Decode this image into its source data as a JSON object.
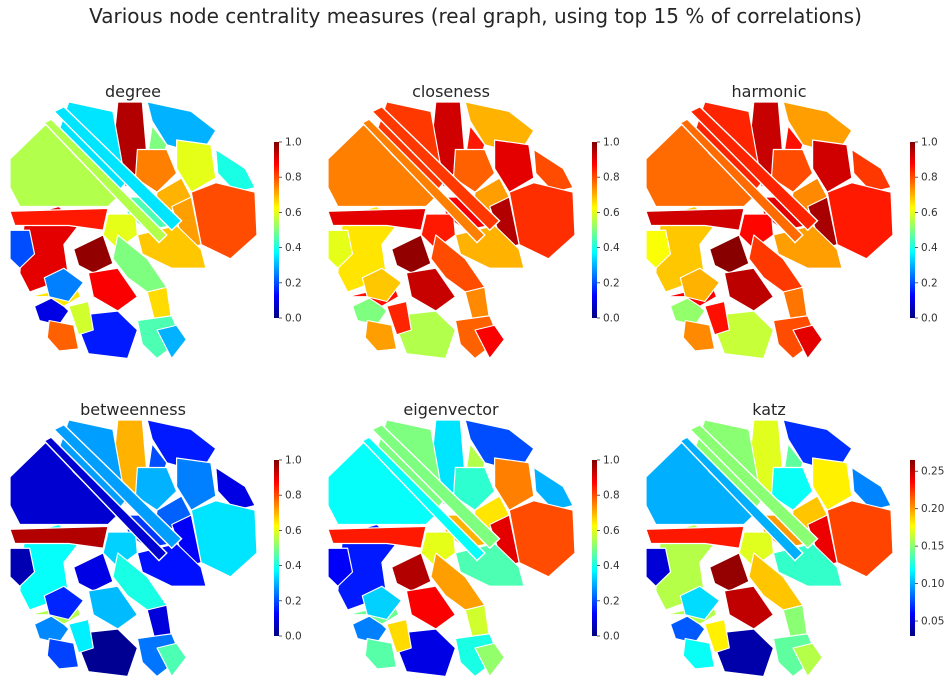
{
  "figure": {
    "title": "Various node centrality measures (real graph, using top 15 % of correlations)"
  },
  "colormap": [
    "#00007f",
    "#0000ff",
    "#007fff",
    "#00ffff",
    "#7fff7f",
    "#ffff00",
    "#ff7f00",
    "#ff0000",
    "#7f0000"
  ],
  "chart_data": [
    {
      "type": "heatmap",
      "title": "degree",
      "colorbar": {
        "min": 0.0,
        "max": 1.0,
        "ticks": [
          "0.0",
          "0.2",
          "0.4",
          "0.6",
          "0.8",
          "1.0"
        ],
        "tick_values": [
          0.0,
          0.2,
          0.4,
          0.6,
          0.8,
          1.0
        ]
      },
      "region_values": [
        0.9,
        0.95,
        0.3,
        0.5,
        0.6,
        0.75,
        0.4,
        0.7,
        0.8,
        0.72,
        0.45,
        0.35,
        0.55,
        0.85,
        0.6,
        0.68,
        0.2,
        0.1,
        0.65,
        0.98,
        0.5,
        0.25,
        0.88,
        0.66,
        0.45,
        0.15,
        0.58,
        0.3,
        0.78
      ]
    },
    {
      "type": "heatmap",
      "title": "closeness",
      "colorbar": {
        "min": 0.0,
        "max": 1.0,
        "ticks": [
          "0.0",
          "0.2",
          "0.4",
          "0.6",
          "0.8",
          "1.0"
        ],
        "tick_values": [
          0.0,
          0.2,
          0.4,
          0.6,
          0.8,
          1.0
        ]
      },
      "region_values": [
        0.65,
        0.92,
        0.7,
        0.85,
        0.9,
        0.78,
        0.8,
        0.72,
        0.83,
        0.95,
        0.88,
        0.82,
        0.75,
        0.9,
        0.85,
        0.7,
        0.6,
        0.5,
        0.86,
        0.98,
        0.8,
        0.68,
        0.93,
        0.74,
        0.78,
        0.55,
        0.84,
        0.88,
        0.72
      ]
    },
    {
      "type": "heatmap",
      "title": "harmonic",
      "colorbar": {
        "min": 0.0,
        "max": 1.0,
        "ticks": [
          "0.0",
          "0.2",
          "0.4",
          "0.6",
          "0.8",
          "1.0"
        ],
        "tick_values": [
          0.0,
          0.2,
          0.4,
          0.6,
          0.8,
          1.0
        ]
      },
      "region_values": [
        0.68,
        0.93,
        0.72,
        0.86,
        0.92,
        0.8,
        0.82,
        0.74,
        0.85,
        0.96,
        0.9,
        0.84,
        0.77,
        0.92,
        0.87,
        0.72,
        0.62,
        0.52,
        0.88,
        0.99,
        0.82,
        0.7,
        0.94,
        0.76,
        0.8,
        0.57,
        0.86,
        0.9,
        0.74
      ]
    },
    {
      "type": "heatmap",
      "title": "betweenness",
      "colorbar": {
        "min": 0.0,
        "max": 1.0,
        "ticks": [
          "0.0",
          "0.2",
          "0.4",
          "0.6",
          "0.8",
          "1.0"
        ],
        "tick_values": [
          0.0,
          0.2,
          0.4,
          0.6,
          0.8,
          1.0
        ]
      },
      "region_values": [
        0.38,
        0.7,
        0.15,
        0.2,
        0.25,
        0.3,
        0.1,
        0.22,
        0.35,
        0.12,
        0.18,
        0.28,
        0.08,
        0.95,
        0.33,
        0.14,
        0.05,
        0.26,
        0.55,
        0.1,
        0.4,
        0.16,
        0.31,
        0.09,
        0.24,
        0.02,
        0.36,
        0.45,
        0.19
      ]
    },
    {
      "type": "heatmap",
      "title": "eigenvector",
      "colorbar": {
        "min": 0.0,
        "max": 1.0,
        "ticks": [
          "0.0",
          "0.2",
          "0.4",
          "0.6",
          "0.8",
          "1.0"
        ],
        "tick_values": [
          0.0,
          0.2,
          0.4,
          0.6,
          0.8,
          1.0
        ]
      },
      "region_values": [
        0.15,
        0.35,
        0.2,
        0.55,
        0.75,
        0.42,
        0.3,
        0.65,
        0.8,
        0.9,
        0.7,
        0.5,
        0.38,
        0.85,
        0.6,
        0.45,
        0.12,
        0.25,
        0.48,
        0.95,
        0.72,
        0.33,
        0.88,
        0.58,
        0.4,
        0.1,
        0.66,
        0.52,
        0.46
      ]
    },
    {
      "type": "heatmap",
      "title": "katz",
      "colorbar": {
        "min": 0.03,
        "max": 0.265,
        "ticks": [
          "0.05",
          "0.10",
          "0.15",
          "0.20",
          "0.25"
        ],
        "tick_values": [
          0.05,
          0.1,
          0.15,
          0.2,
          0.25
        ]
      },
      "region_values": [
        0.16,
        0.17,
        0.07,
        0.14,
        0.18,
        0.12,
        0.09,
        0.19,
        0.22,
        0.24,
        0.2,
        0.15,
        0.1,
        0.23,
        0.17,
        0.13,
        0.05,
        0.08,
        0.16,
        0.26,
        0.19,
        0.11,
        0.25,
        0.15,
        0.14,
        0.04,
        0.18,
        0.16,
        0.12
      ]
    }
  ]
}
